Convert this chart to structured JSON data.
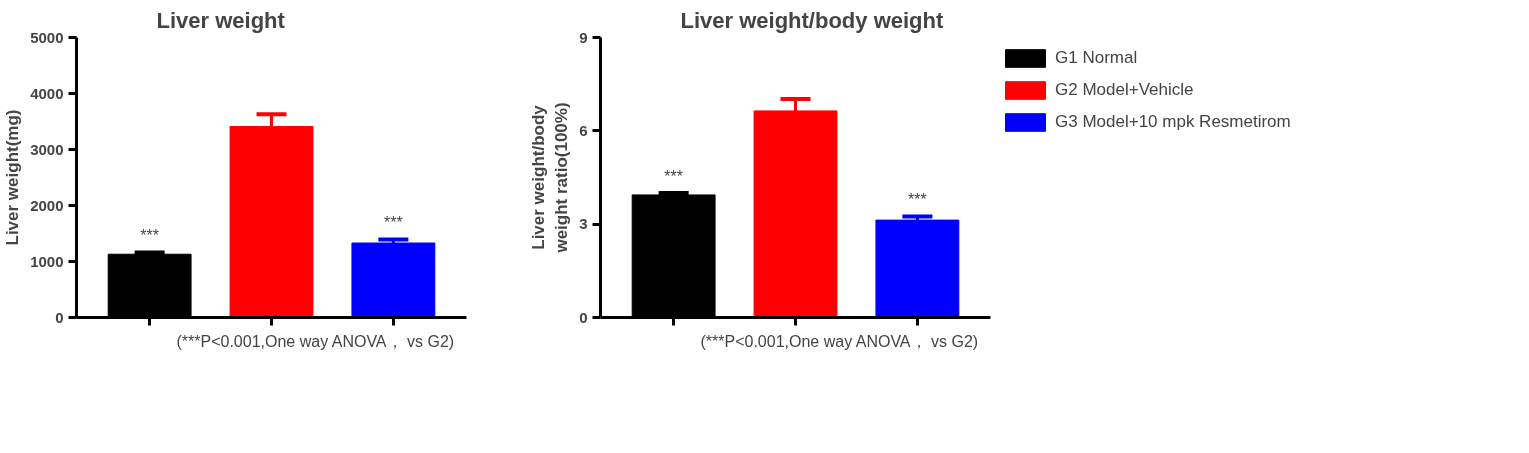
{
  "chart_data": [
    {
      "type": "bar",
      "title": "Liver weight",
      "ylabel": "Liver weight(mg)",
      "categories": [
        null,
        null,
        null
      ],
      "series": [
        {
          "color": "#000000",
          "values": [
            1130,
            null,
            null
          ],
          "errors": [
            30,
            null,
            null
          ],
          "value_labels": [
            "***",
            null,
            null
          ]
        },
        {
          "color": "#ff0000",
          "values": [
            null,
            3410,
            null
          ],
          "errors": [
            null,
            220,
            null
          ],
          "value_labels": [
            null,
            null,
            null
          ]
        },
        {
          "color": "#0000ff",
          "values": [
            null,
            null,
            1330
          ],
          "errors": [
            null,
            null,
            65
          ],
          "value_labels": [
            null,
            null,
            "***"
          ]
        }
      ],
      "ylim": [
        0,
        5000
      ],
      "yticks": [
        0,
        1000,
        2000,
        3000,
        4000,
        5000
      ],
      "tick_labels": "y",
      "grid": false,
      "annotations": [
        "(***P<0.001,One way ANOVA， vs G2)"
      ]
    },
    {
      "type": "bar",
      "title": "Liver weight/body weight",
      "ylabel": "Liver weight/body weight ratio(100%)",
      "categories": [
        null,
        null,
        null
      ],
      "series": [
        {
          "name": "G1 Normal",
          "color": "#000000",
          "values": [
            3.94,
            null,
            null
          ],
          "errors": [
            0.06,
            null,
            null
          ],
          "value_labels": [
            "***",
            null,
            null
          ]
        },
        {
          "name": "G2 Model+Vehicle",
          "color": "#ff0000",
          "values": [
            null,
            6.64,
            null
          ],
          "errors": [
            null,
            0.38,
            null
          ],
          "value_labels": [
            null,
            null,
            null
          ]
        },
        {
          "name": "G3 Model+10 mpk Resmetirom",
          "color": "#0000ff",
          "values": [
            null,
            null,
            3.13
          ],
          "errors": [
            null,
            null,
            0.12
          ],
          "value_labels": [
            null,
            null,
            "***"
          ]
        }
      ],
      "ylim": [
        0,
        9
      ],
      "yticks": [
        0,
        3,
        6,
        9
      ],
      "tick_labels": "y",
      "grid": false,
      "legend": "right",
      "annotations": [
        "(***P<0.001,One way ANOVA， vs G2)"
      ]
    }
  ]
}
